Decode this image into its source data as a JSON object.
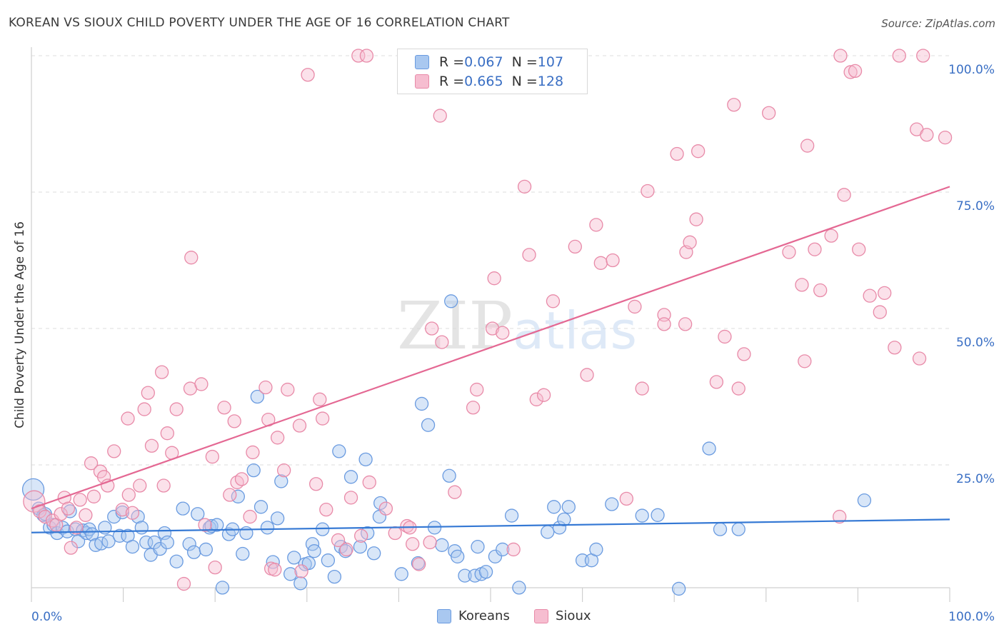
{
  "title": "KOREAN VS SIOUX CHILD POVERTY UNDER THE AGE OF 16 CORRELATION CHART",
  "source": "Source: ZipAtlas.com",
  "watermark": {
    "zip": "ZIP",
    "atlas": "atlas"
  },
  "colors": {
    "blue_fill": "#a9c8f0",
    "blue_stroke": "#6a9be0",
    "blue_line": "#3478d4",
    "pink_fill": "#f6bdd0",
    "pink_stroke": "#e88aa8",
    "pink_line": "#e46893",
    "tick_label": "#3a6fc4",
    "grid": "#dddddd"
  },
  "legend_top": [
    {
      "r_label": "R = ",
      "r_value": "0.067",
      "n_label": "N = ",
      "n_value": "107",
      "series": "Koreans"
    },
    {
      "r_label": "R = ",
      "r_value": "0.665",
      "n_label": "N = ",
      "n_value": "128",
      "series": "Sioux"
    }
  ],
  "legend_bottom": [
    "Koreans",
    "Sioux"
  ],
  "chart_data": {
    "type": "scatter",
    "title": "KOREAN VS SIOUX CHILD POVERTY UNDER THE AGE OF 16 CORRELATION CHART",
    "xlabel": "",
    "ylabel": "Child Poverty Under the Age of 16",
    "xlim": [
      0,
      100
    ],
    "ylim": [
      0,
      100
    ],
    "x_tick_labels": [
      "0.0%",
      "100.0%"
    ],
    "y_ticks": [
      25,
      50,
      75,
      100
    ],
    "y_tick_labels": [
      "25.0%",
      "50.0%",
      "75.0%",
      "100.0%"
    ],
    "grid": true,
    "legend_position": "top-center",
    "series": [
      {
        "name": "Koreans",
        "r": 0.067,
        "n": 107,
        "trend": {
          "x": [
            0,
            100
          ],
          "y": [
            12.6,
            15.0
          ]
        },
        "points": [
          [
            0.2,
            20.5
          ],
          [
            0.8,
            17
          ],
          [
            1.3,
            15.8
          ],
          [
            1.5,
            16
          ],
          [
            2,
            13.5
          ],
          [
            2.4,
            14
          ],
          [
            2.8,
            12.5
          ],
          [
            3.4,
            13.5
          ],
          [
            3.9,
            12.8
          ],
          [
            4.2,
            16.5
          ],
          [
            4.8,
            13.2
          ],
          [
            5.1,
            11
          ],
          [
            5.6,
            13
          ],
          [
            6,
            12.5
          ],
          [
            6.3,
            13.2
          ],
          [
            6.6,
            12.3
          ],
          [
            7,
            10.3
          ],
          [
            7.6,
            10.6
          ],
          [
            8,
            13.5
          ],
          [
            8.4,
            11
          ],
          [
            9,
            15.5
          ],
          [
            9.6,
            12
          ],
          [
            9.9,
            16.3
          ],
          [
            10.5,
            12
          ],
          [
            11,
            10
          ],
          [
            11.6,
            15.5
          ],
          [
            12,
            13.5
          ],
          [
            12.5,
            10.8
          ],
          [
            13,
            8.5
          ],
          [
            13.4,
            10.8
          ],
          [
            14,
            9.6
          ],
          [
            14.5,
            12.5
          ],
          [
            14.8,
            10.8
          ],
          [
            15.8,
            7.3
          ],
          [
            16.5,
            17
          ],
          [
            17.2,
            10.5
          ],
          [
            17.7,
            9
          ],
          [
            18.1,
            16
          ],
          [
            19,
            9.5
          ],
          [
            19.4,
            13.5
          ],
          [
            19.6,
            13.8
          ],
          [
            20.2,
            14
          ],
          [
            20.8,
            2.5
          ],
          [
            21.5,
            12.3
          ],
          [
            21.9,
            13.2
          ],
          [
            22.5,
            19.2
          ],
          [
            23,
            8.7
          ],
          [
            23.4,
            12.5
          ],
          [
            24.2,
            24
          ],
          [
            24.6,
            37.5
          ],
          [
            25,
            17.3
          ],
          [
            25.7,
            13.5
          ],
          [
            26.3,
            7.2
          ],
          [
            26.8,
            15.2
          ],
          [
            27.2,
            22
          ],
          [
            28.2,
            5
          ],
          [
            28.6,
            8
          ],
          [
            29.3,
            3.3
          ],
          [
            29.8,
            6.8
          ],
          [
            30.2,
            7
          ],
          [
            30.6,
            10.5
          ],
          [
            30.8,
            9.2
          ],
          [
            31.7,
            13.2
          ],
          [
            32.3,
            7.5
          ],
          [
            33,
            4.5
          ],
          [
            33.7,
            10
          ],
          [
            34.2,
            9.2
          ],
          [
            33.5,
            27.5
          ],
          [
            34.8,
            22.8
          ],
          [
            35.8,
            10
          ],
          [
            36.4,
            26
          ],
          [
            36.6,
            12.5
          ],
          [
            37.3,
            8.8
          ],
          [
            37.9,
            15.5
          ],
          [
            38,
            18
          ],
          [
            40.3,
            5
          ],
          [
            42.1,
            7
          ],
          [
            42.5,
            36.2
          ],
          [
            43.2,
            32.3
          ],
          [
            43.9,
            13.5
          ],
          [
            44.7,
            10.3
          ],
          [
            45.5,
            23
          ],
          [
            45.7,
            55
          ],
          [
            46.1,
            9.2
          ],
          [
            46.4,
            8.2
          ],
          [
            47.2,
            4.7
          ],
          [
            48.3,
            4.7
          ],
          [
            48.6,
            10
          ],
          [
            49,
            5
          ],
          [
            49.5,
            5.4
          ],
          [
            50.5,
            8.2
          ],
          [
            51.3,
            9.5
          ],
          [
            52.3,
            15.7
          ],
          [
            53.1,
            2.5
          ],
          [
            56.2,
            12.7
          ],
          [
            56.9,
            17.3
          ],
          [
            57.5,
            13.5
          ],
          [
            58,
            15
          ],
          [
            58.5,
            17.3
          ],
          [
            60,
            7.5
          ],
          [
            61,
            7.5
          ],
          [
            61.5,
            9.5
          ],
          [
            63.2,
            17.8
          ],
          [
            66.5,
            15.7
          ],
          [
            68.2,
            15.8
          ],
          [
            70.5,
            2.3
          ],
          [
            73.8,
            28
          ],
          [
            75,
            13.2
          ],
          [
            77,
            13.2
          ],
          [
            90.7,
            18.5
          ]
        ]
      },
      {
        "name": "Sioux",
        "r": 0.665,
        "n": 128,
        "trend": {
          "x": [
            0,
            100
          ],
          "y": [
            17.0,
            76.0
          ]
        },
        "points": [
          [
            0.3,
            18.3
          ],
          [
            0.9,
            16.5
          ],
          [
            1.5,
            15.5
          ],
          [
            2.3,
            14.8
          ],
          [
            2.7,
            14
          ],
          [
            3.2,
            16
          ],
          [
            3.6,
            19
          ],
          [
            4,
            17
          ],
          [
            4.3,
            9.8
          ],
          [
            4.9,
            13.5
          ],
          [
            5.3,
            18.6
          ],
          [
            5.9,
            15.8
          ],
          [
            6.5,
            25.3
          ],
          [
            6.8,
            19.2
          ],
          [
            7.5,
            23.8
          ],
          [
            7.9,
            22.8
          ],
          [
            8.3,
            21.2
          ],
          [
            9,
            27.5
          ],
          [
            9.9,
            16.8
          ],
          [
            10.5,
            33.5
          ],
          [
            10.6,
            19.5
          ],
          [
            11,
            16.2
          ],
          [
            11.8,
            21.2
          ],
          [
            12.3,
            35.2
          ],
          [
            12.7,
            38.2
          ],
          [
            13.1,
            28.5
          ],
          [
            14.2,
            42
          ],
          [
            14.4,
            21.2
          ],
          [
            14.8,
            30.8
          ],
          [
            15.3,
            27.2
          ],
          [
            15.8,
            35.2
          ],
          [
            16.6,
            3.2
          ],
          [
            17.3,
            39
          ],
          [
            17.4,
            63
          ],
          [
            18.5,
            39.8
          ],
          [
            18.9,
            14
          ],
          [
            19.7,
            26.5
          ],
          [
            20,
            6.2
          ],
          [
            21,
            35.5
          ],
          [
            21.6,
            19.5
          ],
          [
            22.1,
            33
          ],
          [
            22.4,
            21.8
          ],
          [
            22.9,
            22.4
          ],
          [
            23.8,
            15.5
          ],
          [
            24.1,
            27.3
          ],
          [
            25.5,
            39.2
          ],
          [
            25.8,
            33.3
          ],
          [
            26.1,
            6
          ],
          [
            26.5,
            5.8
          ],
          [
            26.8,
            30
          ],
          [
            27.5,
            24
          ],
          [
            27.9,
            38.8
          ],
          [
            29.2,
            32.2
          ],
          [
            29.4,
            5.5
          ],
          [
            30.1,
            96.5
          ],
          [
            31,
            21.5
          ],
          [
            31.4,
            37
          ],
          [
            31.7,
            33.5
          ],
          [
            32.1,
            16.8
          ],
          [
            33.4,
            11.2
          ],
          [
            34.3,
            9.5
          ],
          [
            34.8,
            19
          ],
          [
            35.6,
            100
          ],
          [
            35.9,
            12
          ],
          [
            36.5,
            100
          ],
          [
            36.8,
            21.8
          ],
          [
            38.6,
            17
          ],
          [
            39.6,
            12.5
          ],
          [
            40.9,
            13.8
          ],
          [
            41.2,
            13.5
          ],
          [
            41.5,
            10.5
          ],
          [
            42.2,
            6.8
          ],
          [
            43.4,
            10.8
          ],
          [
            43.6,
            50
          ],
          [
            44.5,
            89
          ],
          [
            44.7,
            47.5
          ],
          [
            46.1,
            20
          ],
          [
            48.1,
            35.5
          ],
          [
            48.5,
            38.8
          ],
          [
            50.2,
            50
          ],
          [
            50.4,
            59.2
          ],
          [
            51.3,
            49.2
          ],
          [
            52.5,
            9.5
          ],
          [
            53.7,
            76
          ],
          [
            54.2,
            63.5
          ],
          [
            55,
            37
          ],
          [
            55.8,
            37.8
          ],
          [
            56.8,
            55
          ],
          [
            59.2,
            65
          ],
          [
            60.5,
            41.5
          ],
          [
            61.5,
            69
          ],
          [
            62,
            62
          ],
          [
            63.3,
            62.5
          ],
          [
            64.8,
            18.8
          ],
          [
            65.7,
            54
          ],
          [
            66.5,
            39
          ],
          [
            67.1,
            75.2
          ],
          [
            68.9,
            52.5
          ],
          [
            68.9,
            50.8
          ],
          [
            70.3,
            82
          ],
          [
            71.2,
            50.8
          ],
          [
            71.3,
            64
          ],
          [
            71.7,
            65.8
          ],
          [
            72.4,
            70
          ],
          [
            72.6,
            82.5
          ],
          [
            74.6,
            40.2
          ],
          [
            75.5,
            48.5
          ],
          [
            76.5,
            91
          ],
          [
            77,
            39
          ],
          [
            77.6,
            45.3
          ],
          [
            80.3,
            89.5
          ],
          [
            82.5,
            64
          ],
          [
            83.9,
            58
          ],
          [
            84.2,
            44
          ],
          [
            84.5,
            83.5
          ],
          [
            85.3,
            64.5
          ],
          [
            85.9,
            57
          ],
          [
            87.1,
            67
          ],
          [
            88,
            15.5
          ],
          [
            88.1,
            100
          ],
          [
            88.5,
            74.5
          ],
          [
            89.2,
            97
          ],
          [
            89.7,
            97.2
          ],
          [
            90.1,
            64.5
          ],
          [
            91.3,
            56
          ],
          [
            92.4,
            53
          ],
          [
            92.9,
            56.5
          ],
          [
            94,
            46.5
          ],
          [
            94.5,
            100
          ],
          [
            96.4,
            86.5
          ],
          [
            96.7,
            44.5
          ],
          [
            97.1,
            100
          ],
          [
            97.5,
            85.5
          ],
          [
            99.5,
            85
          ]
        ]
      }
    ]
  }
}
